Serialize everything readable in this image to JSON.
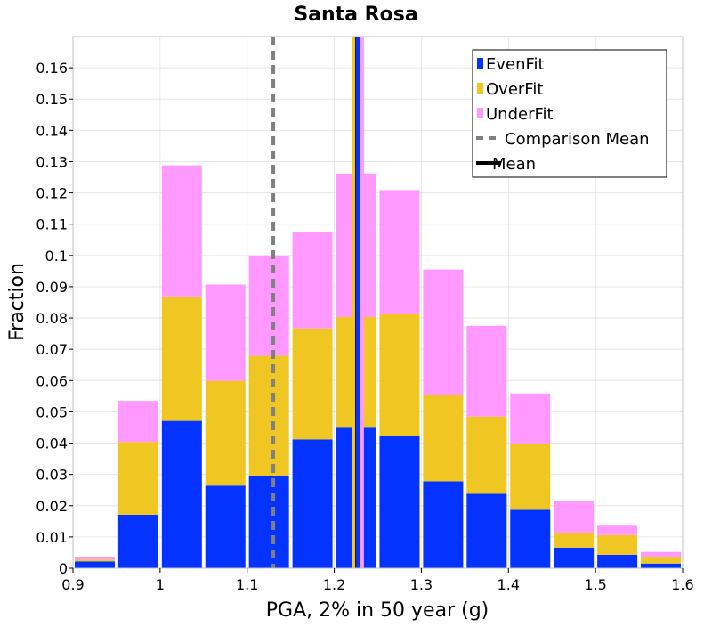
{
  "chart_data": {
    "type": "bar",
    "stacked": true,
    "title": "Santa Rosa",
    "xlabel": "PGA, 2% in 50 year (g)",
    "ylabel": "Fraction",
    "xlim": [
      0.9,
      1.6
    ],
    "ylim": [
      0,
      0.17
    ],
    "grid": true,
    "legend_position": "top-right",
    "bin_width": 0.05,
    "bin_starts": [
      0.9,
      0.95,
      1.0,
      1.05,
      1.1,
      1.15,
      1.2,
      1.25,
      1.3,
      1.35,
      1.4,
      1.45,
      1.5,
      1.55
    ],
    "series": [
      {
        "name": "EvenFit",
        "color": "#0433ff",
        "values": [
          0.0022,
          0.0171,
          0.0471,
          0.0264,
          0.0294,
          0.0412,
          0.0452,
          0.0424,
          0.0278,
          0.0238,
          0.0187,
          0.0066,
          0.0043,
          0.0015
        ]
      },
      {
        "name": "OverFit",
        "color": "#f0c623",
        "values": [
          0.0006,
          0.0233,
          0.0398,
          0.0335,
          0.0385,
          0.0355,
          0.0351,
          0.0389,
          0.0275,
          0.0247,
          0.021,
          0.0048,
          0.0063,
          0.0022
        ]
      },
      {
        "name": "UnderFit",
        "color": "#ff99ff",
        "values": [
          0.0009,
          0.0131,
          0.0419,
          0.0308,
          0.0321,
          0.0307,
          0.0459,
          0.0396,
          0.0402,
          0.029,
          0.0162,
          0.0102,
          0.003,
          0.0015
        ]
      }
    ],
    "vertical_lines": [
      {
        "name": "Comparison Mean",
        "x": 1.13,
        "color": "#808080",
        "style": "dashed"
      },
      {
        "name": "Mean",
        "x": 1.225,
        "color": "#000000",
        "style": "solid"
      },
      {
        "name": "OverFit mean",
        "x": 1.222,
        "color": "#f0c623",
        "style": "solid",
        "legend": false
      },
      {
        "name": "UnderFit mean",
        "x": 1.232,
        "color": "#ff99ff",
        "style": "solid",
        "legend": false
      },
      {
        "name": "EvenFit mean",
        "x": 1.227,
        "color": "#0433ff",
        "style": "solid",
        "legend": false
      }
    ],
    "x_ticks": [
      "0.9",
      "1",
      "1.1",
      "1.2",
      "1.3",
      "1.4",
      "1.5",
      "1.6"
    ],
    "x_tick_values": [
      0.9,
      1.0,
      1.1,
      1.2,
      1.3,
      1.4,
      1.5,
      1.6
    ],
    "y_ticks": [
      "0",
      "0.01",
      "0.02",
      "0.03",
      "0.04",
      "0.05",
      "0.06",
      "0.07",
      "0.08",
      "0.09",
      "0.1",
      "0.11",
      "0.12",
      "0.13",
      "0.14",
      "0.15",
      "0.16"
    ],
    "y_tick_values": [
      0,
      0.01,
      0.02,
      0.03,
      0.04,
      0.05,
      0.06,
      0.07,
      0.08,
      0.09,
      0.1,
      0.11,
      0.12,
      0.13,
      0.14,
      0.15,
      0.16
    ],
    "legend": [
      {
        "label": "EvenFit",
        "kind": "patch",
        "color": "#0433ff"
      },
      {
        "label": "OverFit",
        "kind": "patch",
        "color": "#f0c623"
      },
      {
        "label": "UnderFit",
        "kind": "patch",
        "color": "#ff99ff"
      },
      {
        "label": "Comparison Mean",
        "kind": "dashed-line",
        "color": "#808080"
      },
      {
        "label": "Mean",
        "kind": "line",
        "color": "#000000"
      }
    ]
  }
}
